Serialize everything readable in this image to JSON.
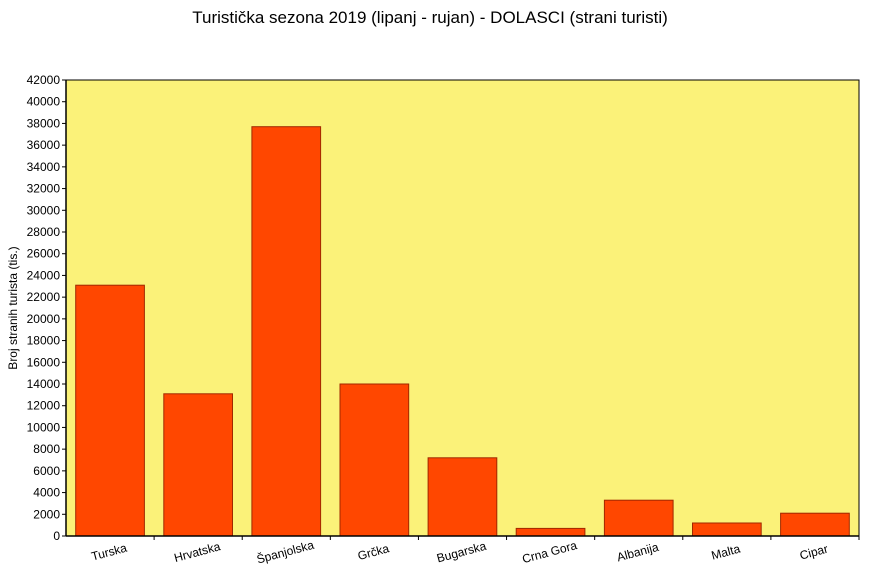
{
  "chart_data": {
    "type": "bar",
    "title": "Turistička sezona 2019 (lipanj - rujan) - DOLASCI (strani turisti)",
    "xlabel": "",
    "ylabel": "Broj stranih turista (tis.)",
    "categories": [
      "Turska",
      "Hrvatska",
      "Španjolska",
      "Grčka",
      "Bugarska",
      "Crna Gora",
      "Albanija",
      "Malta",
      "Cipar"
    ],
    "values": [
      23100,
      13100,
      37700,
      14000,
      7200,
      700,
      3300,
      1200,
      2100
    ],
    "ylim": [
      0,
      42000
    ],
    "ytick_step": 2000,
    "grid": false,
    "colors": {
      "plot_bg": "#FBF279",
      "bar_fill": "#FF4700",
      "bar_stroke": "#A02800",
      "axis": "#000000"
    }
  }
}
